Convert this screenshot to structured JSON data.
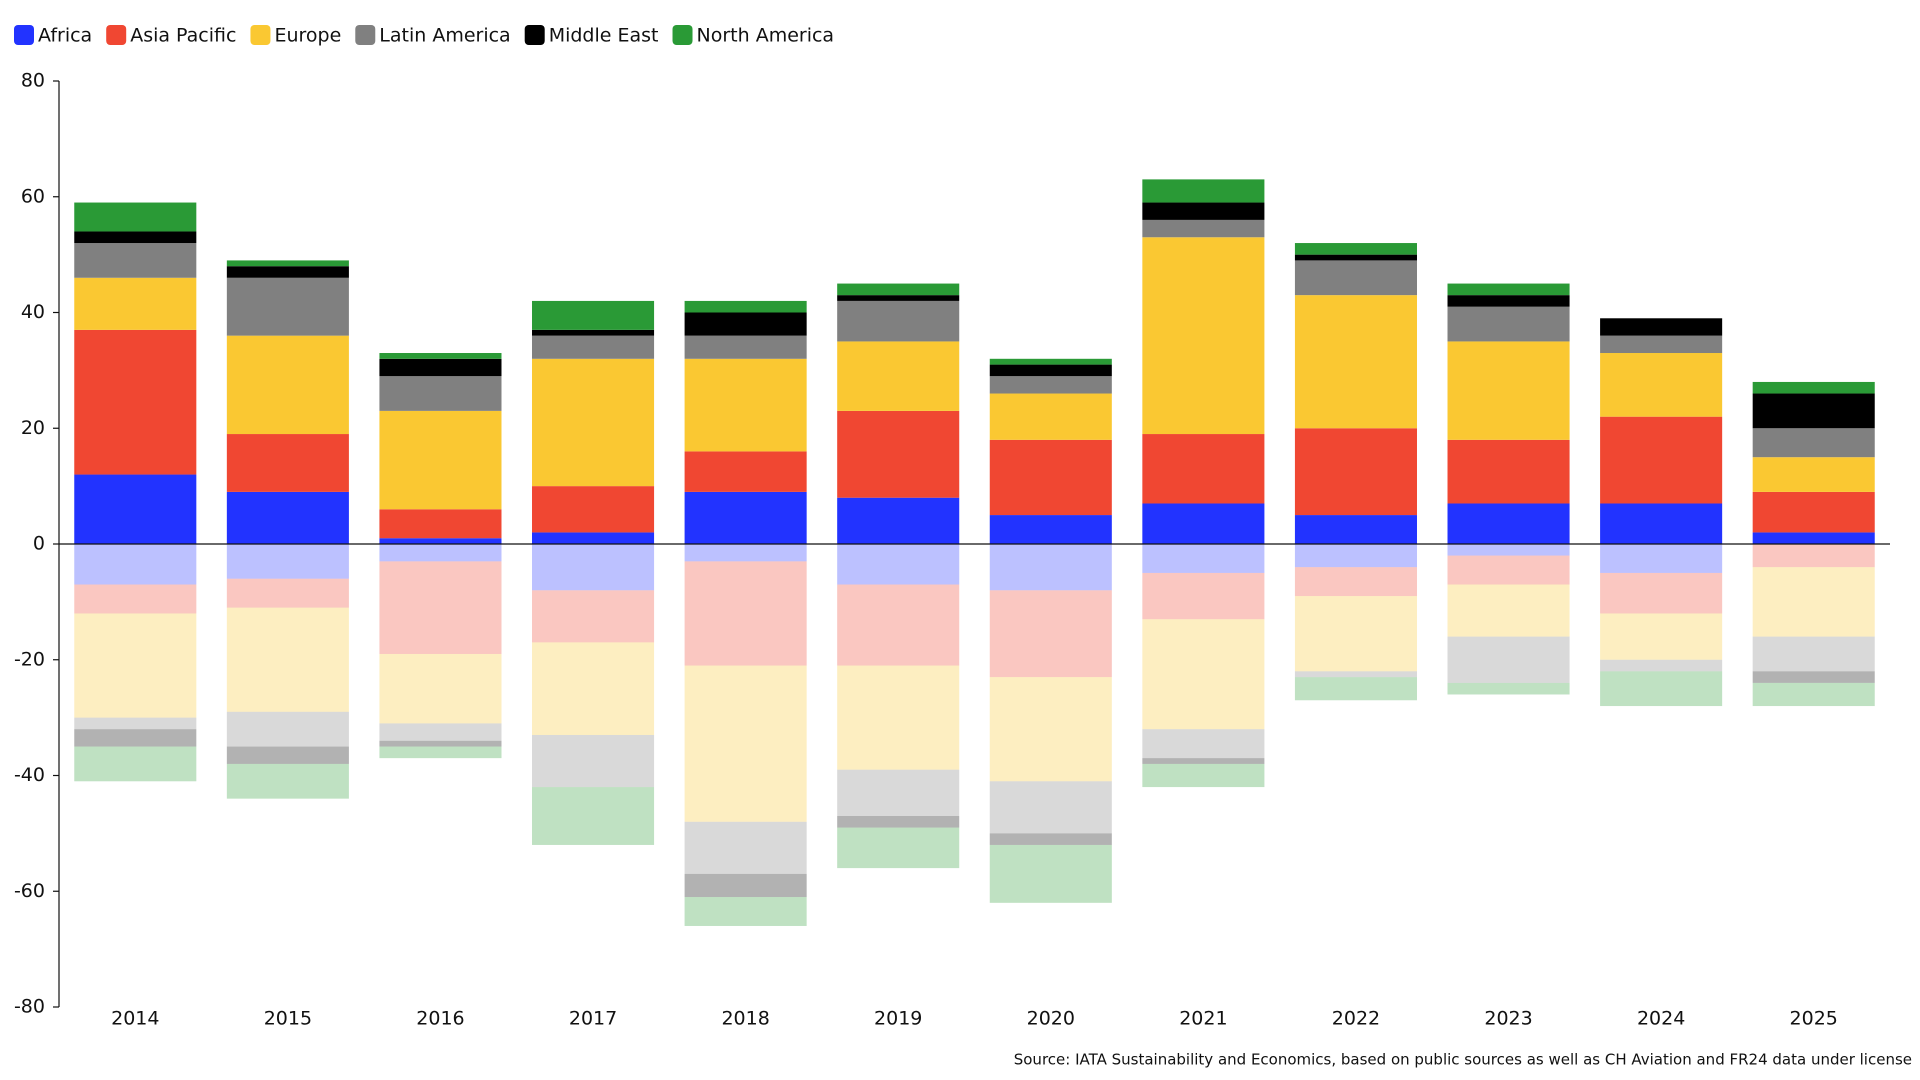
{
  "chart_data": {
    "type": "diverging_stacked_bar",
    "categories": [
      "2014",
      "2015",
      "2016",
      "2017",
      "2018",
      "2019",
      "2020",
      "2021",
      "2022",
      "2023",
      "2024",
      "2025"
    ],
    "series": [
      {
        "name": "Africa",
        "color": "#2233ff",
        "values": [
          12,
          9,
          1,
          2,
          9,
          8,
          5,
          7,
          5,
          7,
          7,
          2
        ],
        "negative_values": [
          -7,
          -6,
          -3,
          -8,
          -3,
          -7,
          -8,
          -5,
          -4,
          -2,
          -5,
          0
        ]
      },
      {
        "name": "Asia Pacific",
        "color": "#f04732",
        "values": [
          25,
          10,
          5,
          8,
          7,
          15,
          13,
          12,
          15,
          11,
          15,
          7
        ],
        "negative_values": [
          -5,
          -5,
          -16,
          -9,
          -18,
          -14,
          -15,
          -8,
          -5,
          -5,
          -7,
          -4
        ]
      },
      {
        "name": "Europe",
        "color": "#fac832",
        "values": [
          9,
          17,
          17,
          22,
          16,
          12,
          8,
          34,
          23,
          17,
          11,
          6
        ],
        "negative_values": [
          -18,
          -18,
          -12,
          -16,
          -27,
          -18,
          -18,
          -19,
          -13,
          -9,
          -8,
          -12
        ]
      },
      {
        "name": "Latin America",
        "color": "#808080",
        "values": [
          6,
          10,
          6,
          4,
          4,
          7,
          3,
          3,
          6,
          6,
          3,
          5
        ],
        "negative_values": [
          -2,
          -6,
          -3,
          -9,
          -9,
          -8,
          -9,
          -5,
          -1,
          -8,
          -2,
          -6
        ]
      },
      {
        "name": "Middle East",
        "color": "#000000",
        "values": [
          2,
          2,
          3,
          1,
          4,
          1,
          2,
          3,
          1,
          2,
          3,
          6
        ],
        "negative_values": [
          -3,
          -3,
          -1,
          0,
          -4,
          -2,
          -2,
          -1,
          0,
          0,
          0,
          -2
        ]
      },
      {
        "name": "North America",
        "color": "#2a9a36",
        "values": [
          5,
          1,
          1,
          5,
          2,
          2,
          1,
          4,
          2,
          2,
          0,
          2
        ],
        "negative_values": [
          -6,
          -6,
          -2,
          -10,
          -5,
          -7,
          -10,
          -4,
          -4,
          -2,
          -6,
          -4
        ]
      }
    ],
    "negative_opacity": 0.3,
    "ylim": [
      -80,
      80
    ],
    "yticks": [
      -80,
      -60,
      -40,
      -20,
      0,
      20,
      40,
      60,
      80
    ],
    "grid": false,
    "source": "Source: IATA Sustainability and Economics, based on public sources as well as CH Aviation and FR24 data under license"
  }
}
